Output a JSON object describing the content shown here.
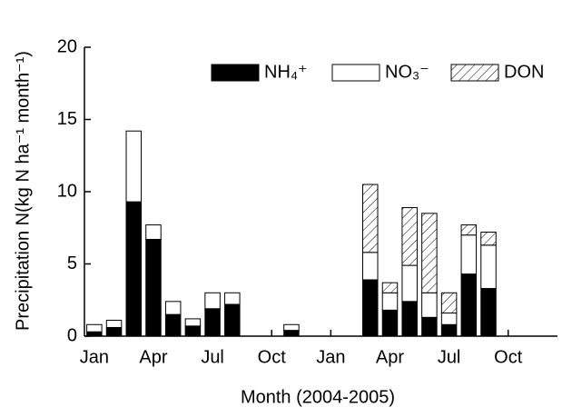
{
  "chart_data": {
    "type": "stacked-bar",
    "x_label": "Month (2004-2005)",
    "y_label": "Precipitation N(kg N ha⁻¹ month⁻¹)",
    "categories": [
      "Jan",
      null,
      null,
      "Apr",
      null,
      null,
      "Jul",
      null,
      null,
      "Oct",
      null,
      null,
      "Jan",
      null,
      null,
      "Apr",
      null,
      null,
      "Jul",
      null,
      null,
      "Oct",
      null,
      null
    ],
    "series": [
      {
        "name": "NH₄⁺",
        "color": "#000000",
        "hatch": false,
        "values": [
          0.3,
          0.6,
          9.3,
          6.7,
          1.5,
          0.7,
          1.9,
          2.2,
          null,
          null,
          0.4,
          null,
          null,
          null,
          3.9,
          1.8,
          2.4,
          1.3,
          0.8,
          4.3,
          3.3,
          null,
          null,
          null
        ]
      },
      {
        "name": "NO₃⁻",
        "color": "#ffffff",
        "hatch": false,
        "values": [
          0.5,
          0.5,
          4.9,
          1.0,
          0.9,
          0.5,
          1.1,
          0.8,
          null,
          null,
          0.4,
          null,
          null,
          null,
          1.9,
          1.2,
          2.5,
          1.7,
          0.8,
          2.7,
          3.0,
          null,
          null,
          null
        ]
      },
      {
        "name": "DON",
        "color": "#ffffff",
        "hatch": true,
        "values": [
          null,
          null,
          null,
          null,
          null,
          null,
          null,
          null,
          null,
          null,
          null,
          null,
          null,
          null,
          4.7,
          0.7,
          4.0,
          5.5,
          1.4,
          0.7,
          0.9,
          null,
          null,
          null
        ]
      }
    ],
    "ylim": [
      0,
      20
    ],
    "yticks": [
      0,
      5,
      10,
      15,
      20
    ],
    "legend": "top-right"
  }
}
